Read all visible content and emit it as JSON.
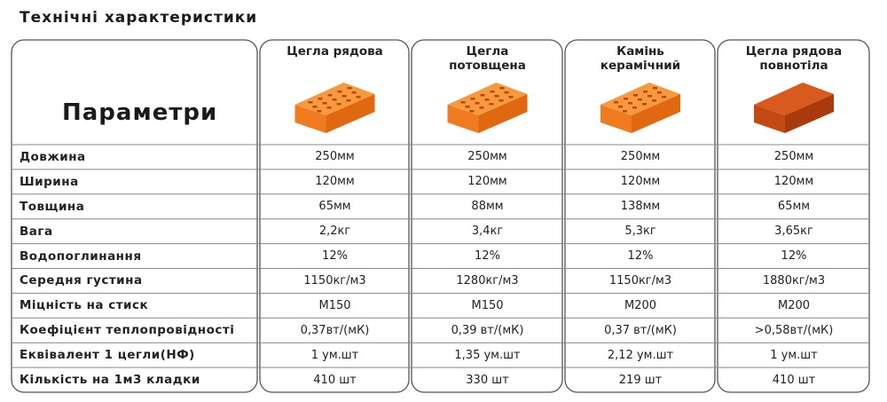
{
  "title": "Технічні характеристики",
  "table": {
    "corner": "Параметри",
    "columns": [
      "Цегла рядова",
      "Цегла потовщена",
      "Камінь керамічний",
      "Цегла рядова повнотіла"
    ],
    "rows": [
      [
        "Довжина",
        "250мм",
        "250мм",
        "250мм",
        "250мм"
      ],
      [
        "Ширина",
        "120мм",
        "120мм",
        "120мм",
        "120мм"
      ],
      [
        "Товщина",
        "65мм",
        "88мм",
        "138мм",
        "65мм"
      ],
      [
        "Вага",
        "2,2кг",
        "3,4кг",
        "5,3кг",
        "3,65кг"
      ],
      [
        "Водопоглинання",
        "12%",
        "12%",
        "12%",
        "12%"
      ],
      [
        "Середня густина",
        "1150кг/м3",
        "1280кг/м3",
        "1150кг/м3",
        "1880кг/м3"
      ],
      [
        "Міцність на стиск",
        "М150",
        "М150",
        "М200",
        "М200"
      ],
      [
        "Коефіцієнт теплопровідності",
        "0,37вт/(мК)",
        "0,39 вт/(мК)",
        "0,37 вт/(мК)",
        ">0,58вт/(мК)"
      ],
      [
        "Еквівалент 1 цегли(НФ)",
        "1 ум.шт",
        "1,35 ум.шт",
        "2,12 ум.шт",
        "1 ум.шт"
      ],
      [
        "Кількість на 1м3 кладки",
        "410 шт",
        "330 шт",
        "219 шт",
        "410 шт"
      ]
    ]
  }
}
